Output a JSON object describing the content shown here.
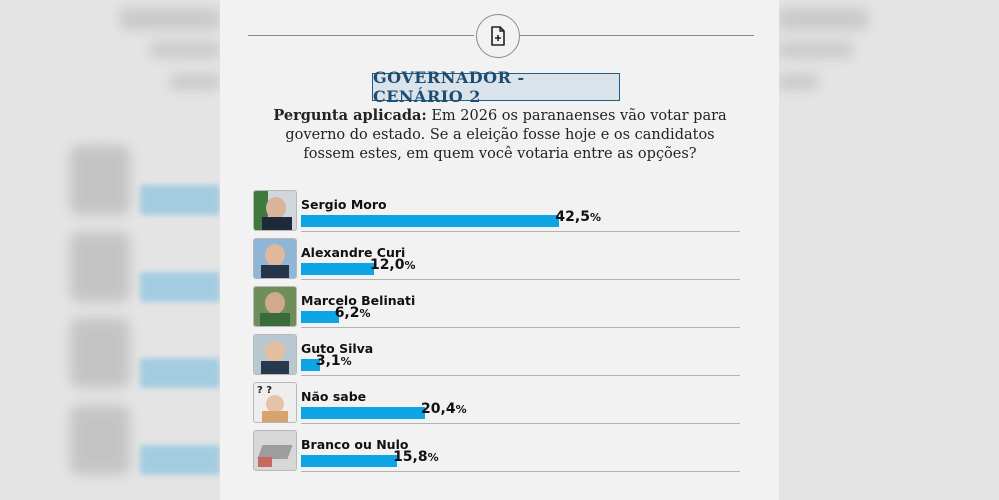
{
  "title": "GOVERNADOR - CENÁRIO 2",
  "question_label": "Pergunta aplicada:",
  "question_text": "Em 2026 os paranaenses vão votar para governo do estado. Se a eleição fosse hoje e os candidatos fossem estes, em quem você votaria entre as opções?",
  "icons": {
    "header": "document-plus-icon"
  },
  "colors": {
    "bar": "#0ea5e6",
    "title_border": "#1f5f86",
    "title_text": "#1f4d72"
  },
  "chart_data": {
    "type": "bar",
    "orientation": "horizontal",
    "title": "GOVERNADOR - CENÁRIO 2",
    "categories": [
      "Sergio Moro",
      "Alexandre Curi",
      "Marcelo Belinati",
      "Guto Silva",
      "Não sabe",
      "Branco ou Nulo"
    ],
    "values": [
      42.5,
      12.0,
      6.2,
      3.1,
      20.4,
      15.8
    ],
    "value_labels": [
      "42,5",
      "12,0",
      "6,2",
      "3,1",
      "20,4",
      "15,8"
    ],
    "unit": "%",
    "xlim": [
      0,
      50
    ]
  }
}
